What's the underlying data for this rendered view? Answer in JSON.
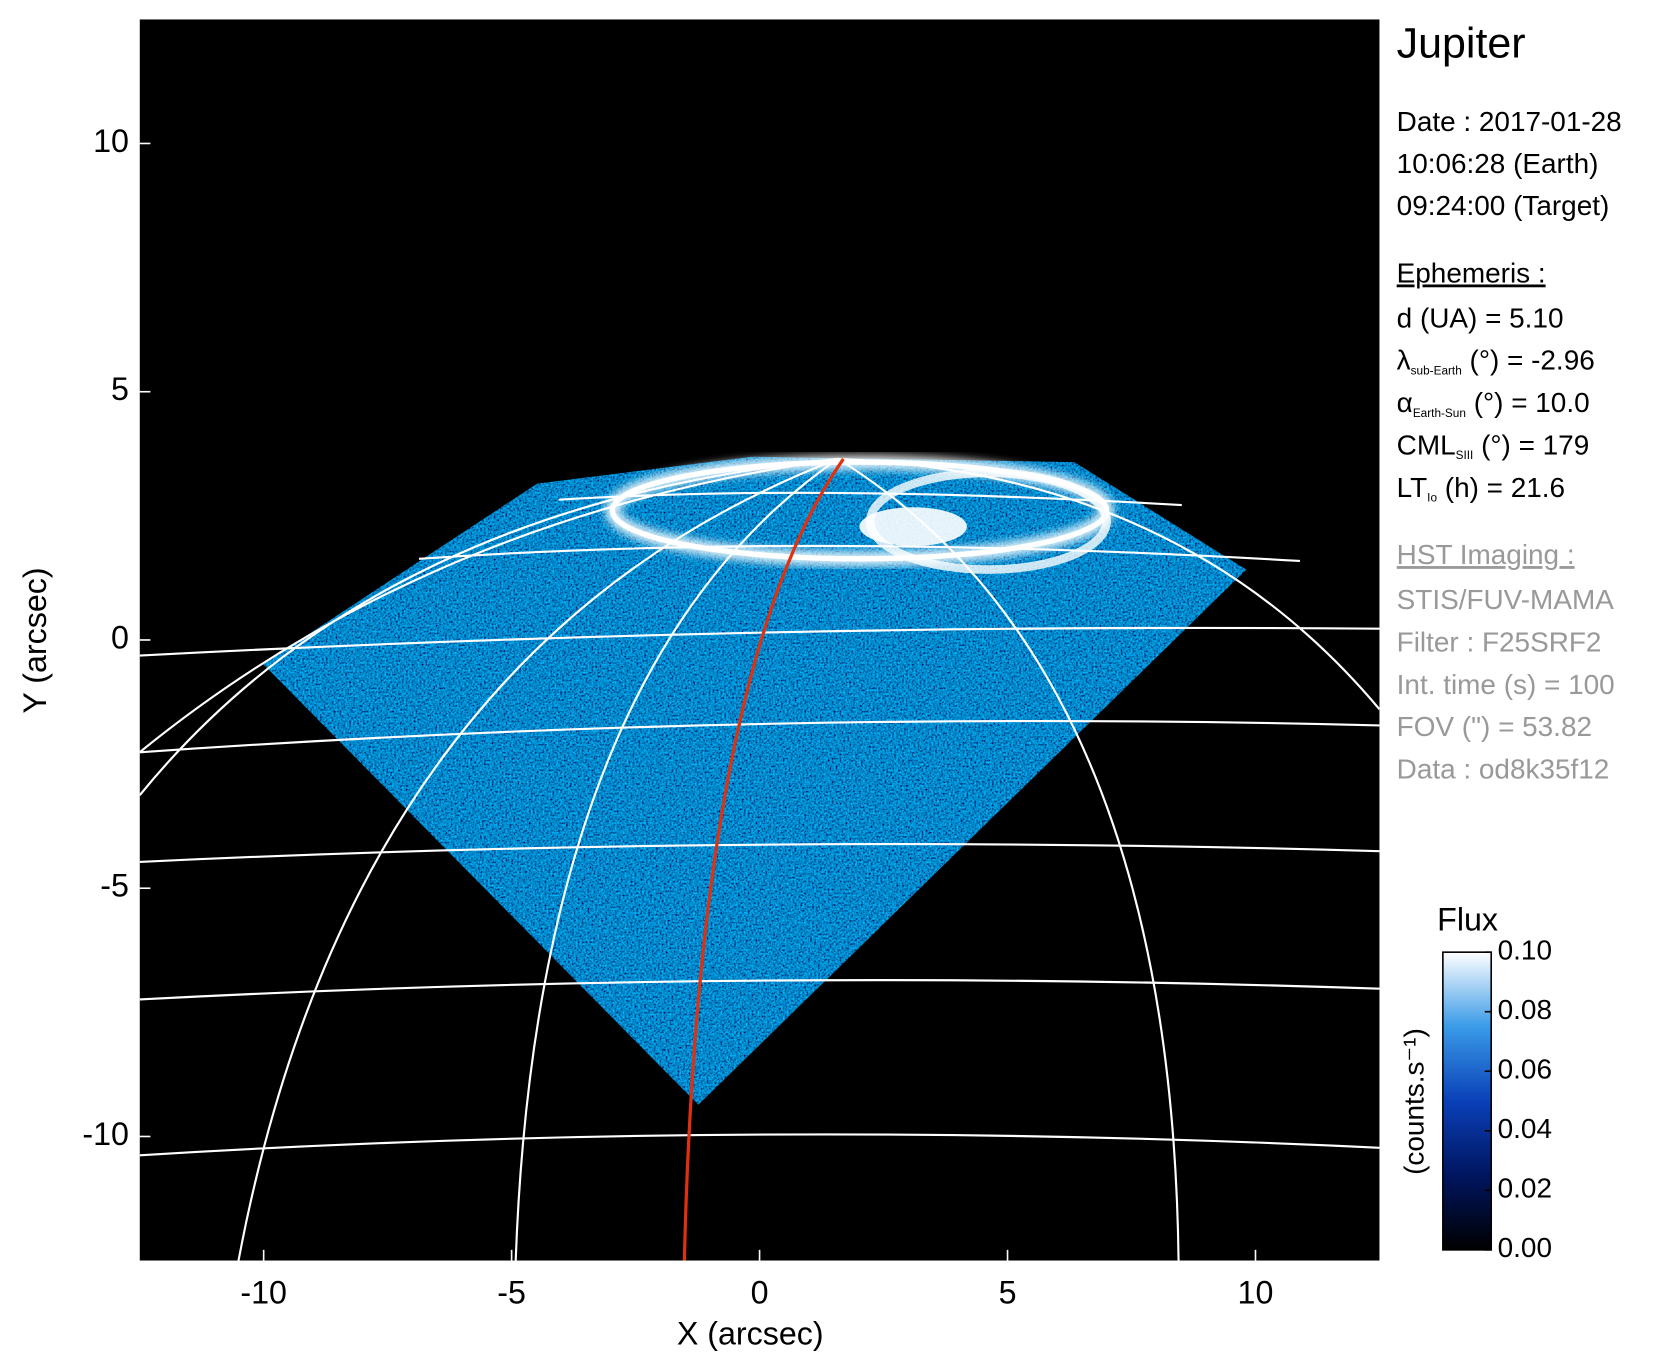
{
  "chart_data": {
    "type": "image",
    "title": "Jupiter",
    "x_label": "X (arcsec)",
    "y_label": "Y (arcsec)",
    "xlim": [
      -12.5,
      12.5
    ],
    "ylim": [
      -12.5,
      12.5
    ],
    "xticks": [
      -10,
      -5,
      0,
      5,
      10
    ],
    "yticks": [
      -10,
      -5,
      0,
      5,
      10
    ],
    "date_lines": [
      "Date : 2017-01-28",
      "10:06:28 (Earth)",
      "09:24:00 (Target)"
    ],
    "ephemeris_title": "Ephemeris :",
    "ephemeris": [
      {
        "symbol": "d (UA)    = 5.10"
      },
      {
        "symbol": "λ",
        "sub": "sub-Earth",
        "rest": " (°) = -2.96"
      },
      {
        "symbol": "α",
        "sub": "Earth-Sun",
        "rest": " (°) = 10.0"
      },
      {
        "symbol": "CML",
        "sub": "SIII",
        "rest": " (°) = 179"
      },
      {
        "symbol": "LT",
        "sub": "Io",
        "rest": " (h) = 21.6"
      }
    ],
    "imaging_title": "HST Imaging :",
    "imaging": [
      "STIS/FUV-MAMA",
      "Filter : F25SRF2",
      "Int. time (s) = 100",
      "FOV (\") = 53.82",
      "Data : od8k35f12"
    ],
    "colorbar": {
      "title": "Flux",
      "label": "(counts.s⁻¹)",
      "lim": [
        0,
        0.1
      ],
      "ticks": [
        {
          "value": 0,
          "label": "0.00"
        },
        {
          "value": 0.02,
          "label": "0.02"
        },
        {
          "value": 0.04,
          "label": "0.04"
        },
        {
          "value": 0.06,
          "label": "0.06"
        },
        {
          "value": 0.08,
          "label": "0.08"
        },
        {
          "value": 0.1,
          "label": "0.10"
        }
      ]
    }
  }
}
